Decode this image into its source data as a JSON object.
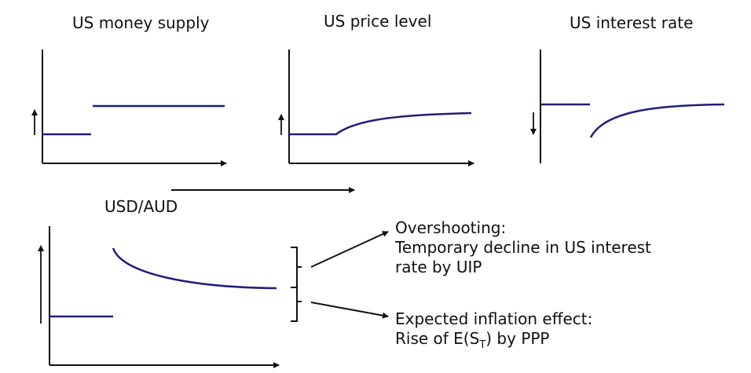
{
  "panels": {
    "money_supply": {
      "title": "US money supply"
    },
    "price_level": {
      "title": "US price level"
    },
    "interest_rate": {
      "title": "US interest rate"
    },
    "exchange_rate": {
      "title": "USD/AUD"
    }
  },
  "annotations": {
    "overshooting": {
      "line1": "Overshooting:",
      "line2": "Temporary decline in US interest",
      "line3": "rate by UIP"
    },
    "inflation": {
      "line1": "Expected inflation effect:",
      "line2_prefix": "Rise of E(S",
      "line2_sub": "T",
      "line2_suffix": ") by PPP"
    }
  },
  "colors": {
    "curve": "#1f1f7a",
    "axis": "#111111"
  }
}
